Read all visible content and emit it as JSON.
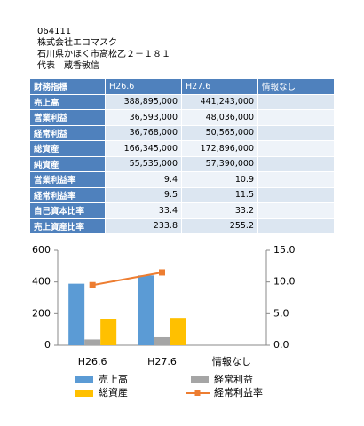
{
  "header": {
    "code": "064111",
    "company": "株式会社エコマスク",
    "address": "石川県かほく市高松乙２－１８１",
    "representative": "代表　蔵香敏信"
  },
  "table": {
    "header": [
      "財務指標",
      "H26.6",
      "H27.6",
      "情報なし"
    ],
    "rows": [
      [
        "売上高",
        "388,895,000",
        "441,243,000"
      ],
      [
        "営業利益",
        "36,593,000",
        "48,036,000"
      ],
      [
        "経常利益",
        "36,768,000",
        "50,565,000"
      ],
      [
        "総資産",
        "166,345,000",
        "172,896,000"
      ],
      [
        "純資産",
        "55,535,000",
        "57,390,000"
      ],
      [
        "営業利益率",
        "9.4",
        "10.9"
      ],
      [
        "経常利益率",
        "9.5",
        "11.5"
      ],
      [
        "自己資本比率",
        "33.4",
        "33.2"
      ],
      [
        "売上資産比率",
        "233.8",
        "255.2"
      ]
    ]
  },
  "chart_data": {
    "type": "bar",
    "categories": [
      "H26.6",
      "H27.6",
      "情報なし"
    ],
    "series": [
      {
        "name": "売上高",
        "color": "#5b9bd5",
        "values": [
          388.9,
          441.2,
          null
        ]
      },
      {
        "name": "経常利益",
        "color": "#a5a5a5",
        "values": [
          36.8,
          50.6,
          null
        ]
      },
      {
        "name": "総資産",
        "color": "#ffc000",
        "values": [
          166.3,
          172.9,
          null
        ]
      },
      {
        "name": "経常利益率",
        "color": "#ed7d31",
        "type": "line",
        "axis": "y2",
        "values": [
          9.5,
          11.5,
          null
        ]
      }
    ],
    "ylim": [
      0,
      600
    ],
    "yticks": [
      0,
      200,
      400,
      600
    ],
    "y2lim": [
      0,
      15
    ],
    "y2ticks": [
      {
        "value": 0,
        "label": "0.0"
      },
      {
        "value": 5,
        "label": "5.0"
      },
      {
        "value": 10,
        "label": "10.0"
      },
      {
        "value": 15,
        "label": "15.0"
      }
    ],
    "grid": false,
    "legend": "bottom"
  }
}
